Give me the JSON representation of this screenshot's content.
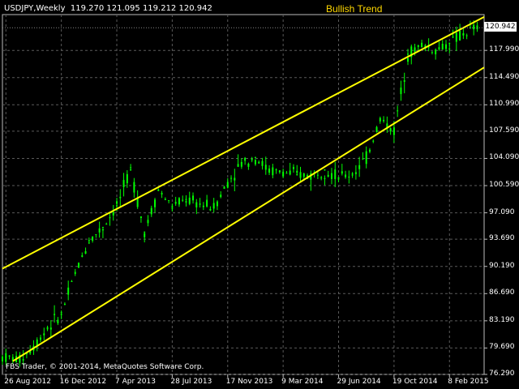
{
  "header": {
    "symbol": "USDJPY,Weekly",
    "ohlc": "119.270 121.095 119.212 120.942"
  },
  "annotation": {
    "title": "Bullish Trend"
  },
  "footer": {
    "copyright": "FBS Trader, © 2001-2014, MetaQuotes Software Corp."
  },
  "price_tag": "120.942",
  "colors": {
    "background": "#000000",
    "candles": "#00ff00",
    "trendlines": "#ffff00",
    "grid": "#5a5a5a",
    "text": "#ffffff",
    "annotation": "#ffd800"
  },
  "chart_data": {
    "type": "line",
    "title": "",
    "y_ticks": [
      "120.942",
      "117.990",
      "114.490",
      "110.990",
      "107.590",
      "104.090",
      "100.590",
      "97.090",
      "93.690",
      "90.190",
      "86.690",
      "83.190",
      "79.690",
      "76.290"
    ],
    "x_ticks": [
      "26 Aug 2012",
      "16 Dec 2012",
      "7 Apr 2013",
      "28 Jul 2013",
      "17 Nov 2013",
      "9 Mar 2014",
      "29 Jun 2014",
      "19 Oct 2014",
      "8 Feb 2015"
    ],
    "ylim": [
      76.29,
      122.6
    ],
    "xlim": [
      "2012-08-19",
      "2015-04-19"
    ],
    "grid": true,
    "series": [
      {
        "x": [
          "2012-08-26",
          "2012-09-23",
          "2012-10-21",
          "2012-11-18",
          "2012-12-16",
          "2013-01-13",
          "2013-02-10",
          "2013-03-10",
          "2013-04-07",
          "2013-05-05",
          "2013-06-02",
          "2013-06-30",
          "2013-07-28",
          "2013-08-25",
          "2013-09-22",
          "2013-10-20",
          "2013-11-17",
          "2013-12-15",
          "2014-01-12",
          "2014-02-09",
          "2014-03-09",
          "2014-04-06",
          "2014-05-04",
          "2014-06-01",
          "2014-06-29",
          "2014-07-27",
          "2014-08-24",
          "2014-09-21",
          "2014-10-19",
          "2014-11-16",
          "2014-12-14",
          "2015-01-11",
          "2015-02-08",
          "2015-03-08",
          "2015-04-05"
        ],
        "values": [
          78.5,
          78.2,
          79.9,
          82.3,
          84.0,
          89.3,
          93.5,
          95.2,
          98.0,
          102.6,
          94.6,
          100.0,
          97.9,
          98.8,
          98.2,
          97.8,
          101.0,
          103.5,
          104.2,
          102.5,
          102.3,
          102.0,
          101.9,
          102.6,
          101.6,
          102.1,
          104.1,
          109.2,
          107.6,
          117.5,
          118.7,
          118.0,
          118.9,
          120.1,
          120.9
        ]
      }
    ],
    "trendlines": [
      {
        "from": {
          "x": "2012-08-19",
          "y": 89.9
        },
        "to": {
          "x": "2015-04-19",
          "y": 122.3
        }
      },
      {
        "from": {
          "x": "2012-09-09",
          "y": 78.0
        },
        "to": {
          "x": "2015-04-19",
          "y": 115.8
        }
      }
    ]
  }
}
